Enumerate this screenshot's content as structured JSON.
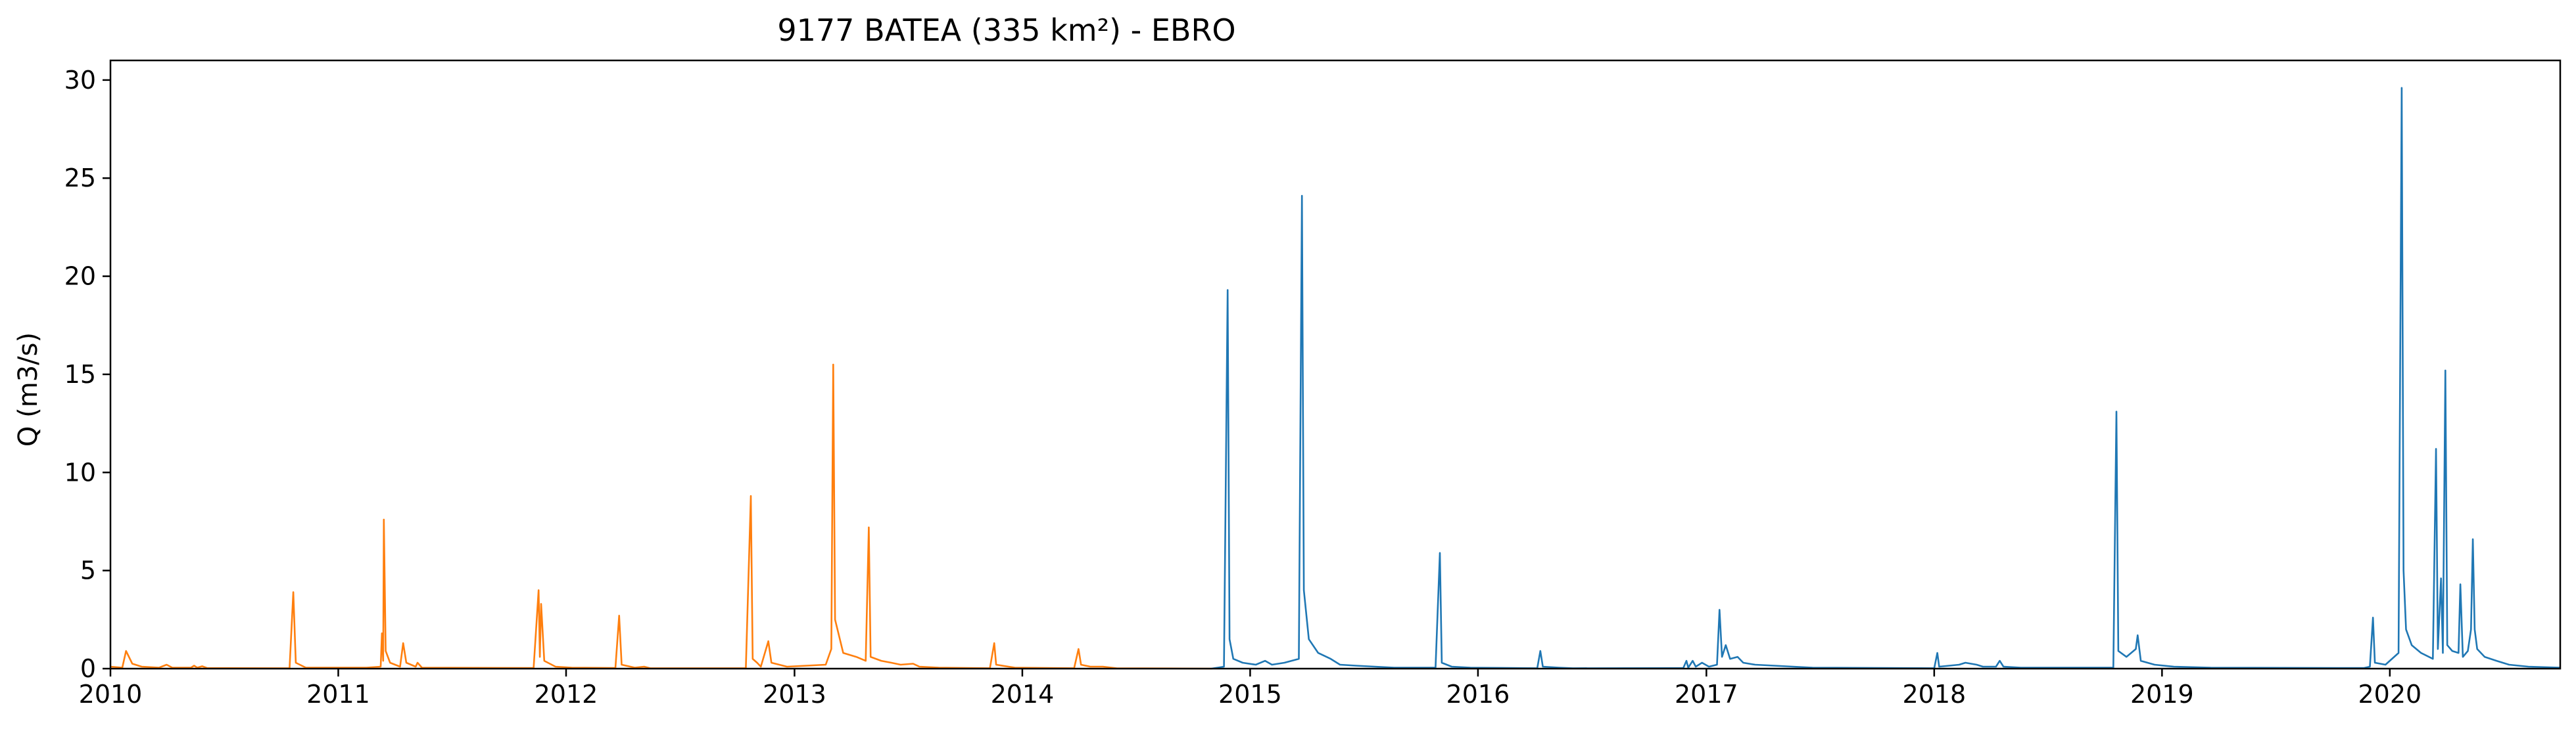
{
  "chart_data": {
    "type": "line",
    "title": "9177 BATEA (335 km²) - EBRO",
    "xlabel": "",
    "ylabel": "Q (m3/s)",
    "xlim": [
      "2010-01-01",
      "2020-09-30"
    ],
    "ylim": [
      0,
      31
    ],
    "x_ticks": [
      "2010",
      "2011",
      "2012",
      "2013",
      "2014",
      "2015",
      "2016",
      "2017",
      "2018",
      "2019",
      "2020"
    ],
    "y_ticks": [
      "0",
      "5",
      "10",
      "15",
      "20",
      "25",
      "30"
    ],
    "grid": false,
    "legend": "none",
    "series": [
      {
        "color": "#ff7f0e",
        "points": [
          [
            "2010-01-01",
            0.1
          ],
          [
            "2010-01-20",
            0.05
          ],
          [
            "2010-01-26",
            0.9
          ],
          [
            "2010-02-05",
            0.25
          ],
          [
            "2010-02-20",
            0.1
          ],
          [
            "2010-03-20",
            0.05
          ],
          [
            "2010-04-01",
            0.2
          ],
          [
            "2010-04-10",
            0.05
          ],
          [
            "2010-05-10",
            0.05
          ],
          [
            "2010-05-15",
            0.15
          ],
          [
            "2010-05-20",
            0.05
          ],
          [
            "2010-05-28",
            0.12
          ],
          [
            "2010-06-05",
            0.03
          ],
          [
            "2010-10-15",
            0.02
          ],
          [
            "2010-10-21",
            3.9
          ],
          [
            "2010-10-25",
            0.3
          ],
          [
            "2010-11-10",
            0.05
          ],
          [
            "2011-02-15",
            0.05
          ],
          [
            "2011-03-10",
            0.1
          ],
          [
            "2011-03-12",
            1.8
          ],
          [
            "2011-03-14",
            0.4
          ],
          [
            "2011-03-15",
            7.6
          ],
          [
            "2011-03-18",
            0.9
          ],
          [
            "2011-03-25",
            0.3
          ],
          [
            "2011-04-10",
            0.1
          ],
          [
            "2011-04-15",
            1.3
          ],
          [
            "2011-04-20",
            0.3
          ],
          [
            "2011-05-05",
            0.1
          ],
          [
            "2011-05-08",
            0.3
          ],
          [
            "2011-05-15",
            0.05
          ],
          [
            "2011-11-10",
            0.03
          ],
          [
            "2011-11-18",
            4.0
          ],
          [
            "2011-11-20",
            0.6
          ],
          [
            "2011-11-22",
            3.3
          ],
          [
            "2011-11-27",
            0.4
          ],
          [
            "2011-12-15",
            0.1
          ],
          [
            "2012-01-10",
            0.05
          ],
          [
            "2012-03-20",
            0.03
          ],
          [
            "2012-03-26",
            2.7
          ],
          [
            "2012-03-30",
            0.2
          ],
          [
            "2012-04-20",
            0.05
          ],
          [
            "2012-05-05",
            0.1
          ],
          [
            "2012-05-15",
            0.02
          ],
          [
            "2012-10-15",
            0.02
          ],
          [
            "2012-10-23",
            8.8
          ],
          [
            "2012-10-26",
            0.5
          ],
          [
            "2012-11-02",
            0.3
          ],
          [
            "2012-11-08",
            0.1
          ],
          [
            "2012-11-20",
            1.4
          ],
          [
            "2012-11-25",
            0.3
          ],
          [
            "2012-12-20",
            0.1
          ],
          [
            "2013-02-20",
            0.2
          ],
          [
            "2013-03-01",
            1.0
          ],
          [
            "2013-03-04",
            15.5
          ],
          [
            "2013-03-07",
            2.5
          ],
          [
            "2013-03-20",
            0.8
          ],
          [
            "2013-04-10",
            0.6
          ],
          [
            "2013-04-25",
            0.4
          ],
          [
            "2013-04-30",
            7.2
          ],
          [
            "2013-05-03",
            0.6
          ],
          [
            "2013-05-20",
            0.4
          ],
          [
            "2013-06-05",
            0.3
          ],
          [
            "2013-06-20",
            0.2
          ],
          [
            "2013-07-10",
            0.25
          ],
          [
            "2013-07-20",
            0.1
          ],
          [
            "2013-08-20",
            0.05
          ],
          [
            "2013-11-10",
            0.02
          ],
          [
            "2013-11-17",
            1.3
          ],
          [
            "2013-11-20",
            0.2
          ],
          [
            "2013-12-20",
            0.05
          ],
          [
            "2014-03-25",
            0.02
          ],
          [
            "2014-04-01",
            1.0
          ],
          [
            "2014-04-05",
            0.2
          ],
          [
            "2014-04-20",
            0.1
          ],
          [
            "2014-05-10",
            0.1
          ],
          [
            "2014-06-01",
            0.02
          ],
          [
            "2014-10-31",
            0.0
          ]
        ]
      },
      {
        "color": "#1f77b4",
        "points": [
          [
            "2014-10-31",
            0.0
          ],
          [
            "2014-11-20",
            0.1
          ],
          [
            "2014-11-26",
            19.3
          ],
          [
            "2014-11-29",
            1.5
          ],
          [
            "2014-12-05",
            0.5
          ],
          [
            "2014-12-20",
            0.3
          ],
          [
            "2015-01-10",
            0.2
          ],
          [
            "2015-01-25",
            0.4
          ],
          [
            "2015-02-05",
            0.2
          ],
          [
            "2015-02-25",
            0.3
          ],
          [
            "2015-03-20",
            0.5
          ],
          [
            "2015-03-25",
            24.1
          ],
          [
            "2015-03-28",
            4.0
          ],
          [
            "2015-04-05",
            1.5
          ],
          [
            "2015-04-20",
            0.8
          ],
          [
            "2015-05-10",
            0.5
          ],
          [
            "2015-05-25",
            0.2
          ],
          [
            "2015-06-20",
            0.15
          ],
          [
            "2015-07-20",
            0.1
          ],
          [
            "2015-08-20",
            0.05
          ],
          [
            "2015-10-25",
            0.05
          ],
          [
            "2015-11-01",
            5.9
          ],
          [
            "2015-11-04",
            0.3
          ],
          [
            "2015-11-20",
            0.1
          ],
          [
            "2015-12-20",
            0.05
          ],
          [
            "2016-04-05",
            0.02
          ],
          [
            "2016-04-10",
            0.9
          ],
          [
            "2016-04-14",
            0.1
          ],
          [
            "2016-05-10",
            0.05
          ],
          [
            "2016-06-01",
            0.02
          ],
          [
            "2016-11-25",
            0.03
          ],
          [
            "2016-11-30",
            0.4
          ],
          [
            "2016-12-03",
            0.05
          ],
          [
            "2016-12-10",
            0.4
          ],
          [
            "2016-12-15",
            0.1
          ],
          [
            "2016-12-25",
            0.3
          ],
          [
            "2017-01-05",
            0.1
          ],
          [
            "2017-01-18",
            0.2
          ],
          [
            "2017-01-22",
            3.0
          ],
          [
            "2017-01-26",
            0.6
          ],
          [
            "2017-02-01",
            1.2
          ],
          [
            "2017-02-08",
            0.5
          ],
          [
            "2017-02-20",
            0.6
          ],
          [
            "2017-03-01",
            0.3
          ],
          [
            "2017-03-20",
            0.2
          ],
          [
            "2017-04-20",
            0.15
          ],
          [
            "2017-05-20",
            0.1
          ],
          [
            "2017-06-20",
            0.05
          ],
          [
            "2018-01-01",
            0.02
          ],
          [
            "2018-01-06",
            0.8
          ],
          [
            "2018-01-09",
            0.1
          ],
          [
            "2018-02-10",
            0.2
          ],
          [
            "2018-02-20",
            0.3
          ],
          [
            "2018-03-10",
            0.2
          ],
          [
            "2018-03-20",
            0.1
          ],
          [
            "2018-04-10",
            0.1
          ],
          [
            "2018-04-16",
            0.4
          ],
          [
            "2018-04-22",
            0.1
          ],
          [
            "2018-05-20",
            0.05
          ],
          [
            "2018-10-15",
            0.05
          ],
          [
            "2018-10-20",
            13.1
          ],
          [
            "2018-10-23",
            0.9
          ],
          [
            "2018-11-05",
            0.6
          ],
          [
            "2018-11-20",
            1.0
          ],
          [
            "2018-11-23",
            1.7
          ],
          [
            "2018-11-28",
            0.4
          ],
          [
            "2018-12-20",
            0.2
          ],
          [
            "2019-01-20",
            0.1
          ],
          [
            "2019-03-20",
            0.05
          ],
          [
            "2019-11-20",
            0.03
          ],
          [
            "2019-11-30",
            0.1
          ],
          [
            "2019-12-05",
            2.6
          ],
          [
            "2019-12-08",
            0.3
          ],
          [
            "2019-12-25",
            0.2
          ],
          [
            "2020-01-15",
            0.8
          ],
          [
            "2020-01-20",
            29.6
          ],
          [
            "2020-01-23",
            5.0
          ],
          [
            "2020-01-27",
            2.0
          ],
          [
            "2020-02-05",
            1.2
          ],
          [
            "2020-02-20",
            0.8
          ],
          [
            "2020-03-10",
            0.5
          ],
          [
            "2020-03-15",
            11.2
          ],
          [
            "2020-03-18",
            1.0
          ],
          [
            "2020-03-23",
            4.6
          ],
          [
            "2020-03-26",
            0.8
          ],
          [
            "2020-03-30",
            15.2
          ],
          [
            "2020-04-02",
            1.2
          ],
          [
            "2020-04-10",
            0.9
          ],
          [
            "2020-04-20",
            0.8
          ],
          [
            "2020-04-23",
            4.3
          ],
          [
            "2020-04-27",
            0.6
          ],
          [
            "2020-05-05",
            0.9
          ],
          [
            "2020-05-10",
            2.0
          ],
          [
            "2020-05-13",
            6.6
          ],
          [
            "2020-05-16",
            2.0
          ],
          [
            "2020-05-20",
            1.0
          ],
          [
            "2020-06-01",
            0.6
          ],
          [
            "2020-06-20",
            0.4
          ],
          [
            "2020-07-10",
            0.2
          ],
          [
            "2020-08-10",
            0.1
          ],
          [
            "2020-09-30",
            0.05
          ]
        ]
      }
    ]
  }
}
